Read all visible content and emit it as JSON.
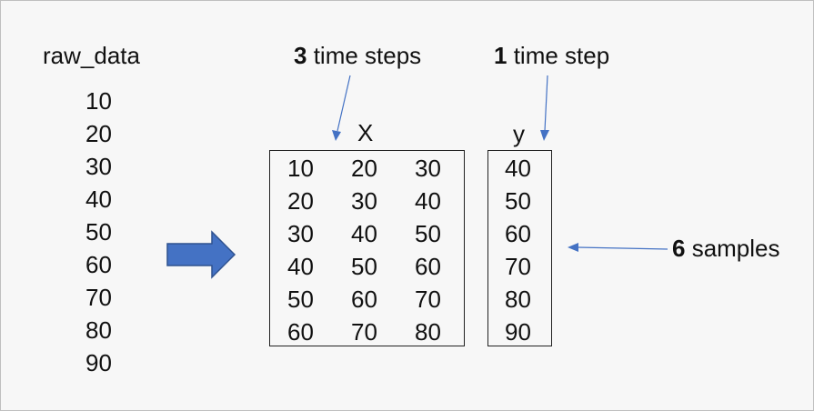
{
  "raw_data": {
    "title": "raw_data",
    "values": [
      "10",
      "20",
      "30",
      "40",
      "50",
      "60",
      "70",
      "80",
      "90"
    ]
  },
  "labels": {
    "time_steps_in": {
      "num": "3",
      "text": " time steps"
    },
    "time_steps_out": {
      "num": "1",
      "text": " time step"
    },
    "samples": {
      "num": "6",
      "text": " samples"
    }
  },
  "x_matrix": {
    "title": "X",
    "rows": [
      [
        "10",
        "20",
        "30"
      ],
      [
        "20",
        "30",
        "40"
      ],
      [
        "30",
        "40",
        "50"
      ],
      [
        "40",
        "50",
        "60"
      ],
      [
        "50",
        "60",
        "70"
      ],
      [
        "60",
        "70",
        "80"
      ]
    ]
  },
  "y_vector": {
    "title": "y",
    "values": [
      "40",
      "50",
      "60",
      "70",
      "80",
      "90"
    ]
  },
  "colors": {
    "arrow_fill": "#4472c4",
    "arrow_stroke": "#2f528f",
    "pointer": "#4472c4",
    "box_border": "#222222",
    "background": "#f7f7f7"
  },
  "icons": {
    "transform_arrow": "block-right-arrow",
    "pointer": "thin-pointer-arrow"
  }
}
